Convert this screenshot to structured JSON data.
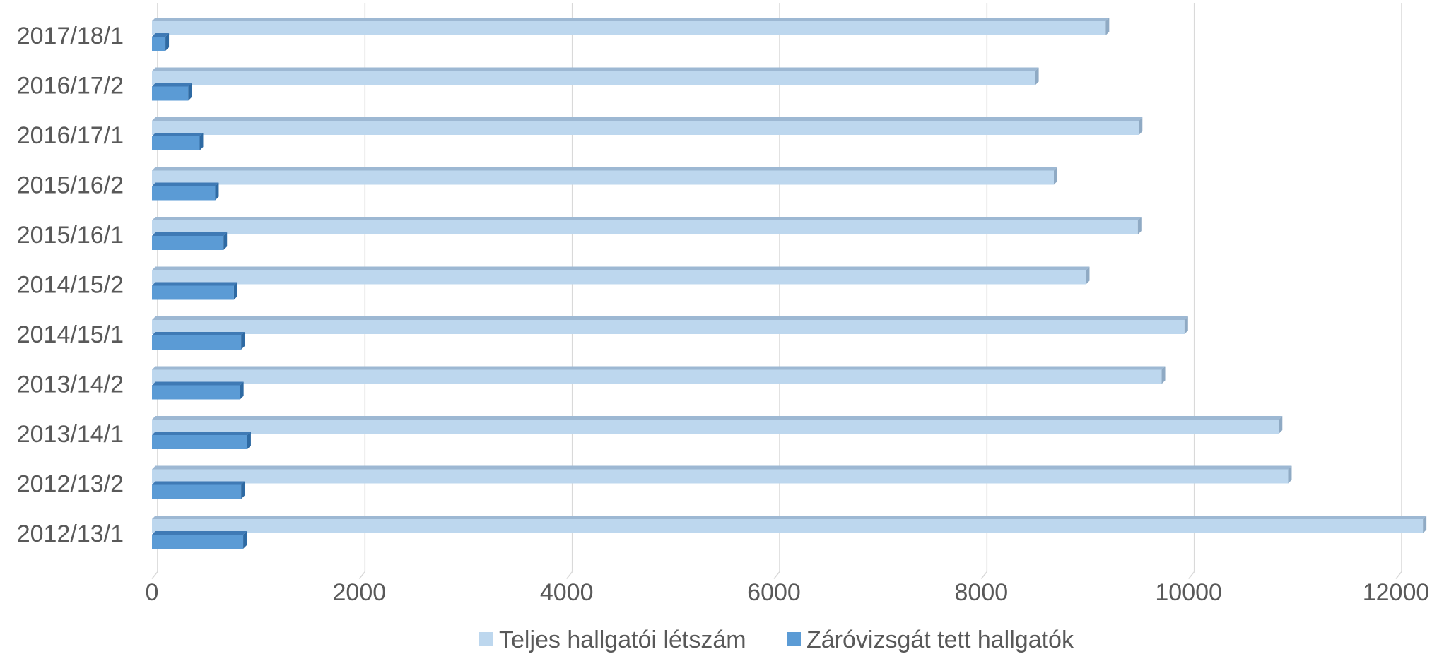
{
  "chart_data": {
    "type": "bar",
    "orientation": "horizontal",
    "categories": [
      "2017/18/1",
      "2016/17/2",
      "2016/17/1",
      "2015/16/2",
      "2015/16/1",
      "2014/15/2",
      "2014/15/1",
      "2013/14/2",
      "2013/14/1",
      "2012/13/2",
      "2012/13/1"
    ],
    "series": [
      {
        "name": "Teljes hallgatói létszám",
        "color": "#bdd7ee",
        "values": [
          9200,
          8520,
          9520,
          8700,
          9510,
          9010,
          9960,
          9740,
          10870,
          10960,
          12260
        ]
      },
      {
        "name": "Záróvizsgát tett hallgatók",
        "color": "#5b9bd5",
        "values": [
          130,
          350,
          460,
          610,
          690,
          790,
          860,
          850,
          920,
          860,
          880
        ]
      }
    ],
    "xlim": [
      0,
      12000
    ],
    "xticks": [
      "0",
      "2000",
      "4000",
      "6000",
      "8000",
      "10000",
      "12000"
    ],
    "grid": true,
    "legend": "bottom"
  }
}
